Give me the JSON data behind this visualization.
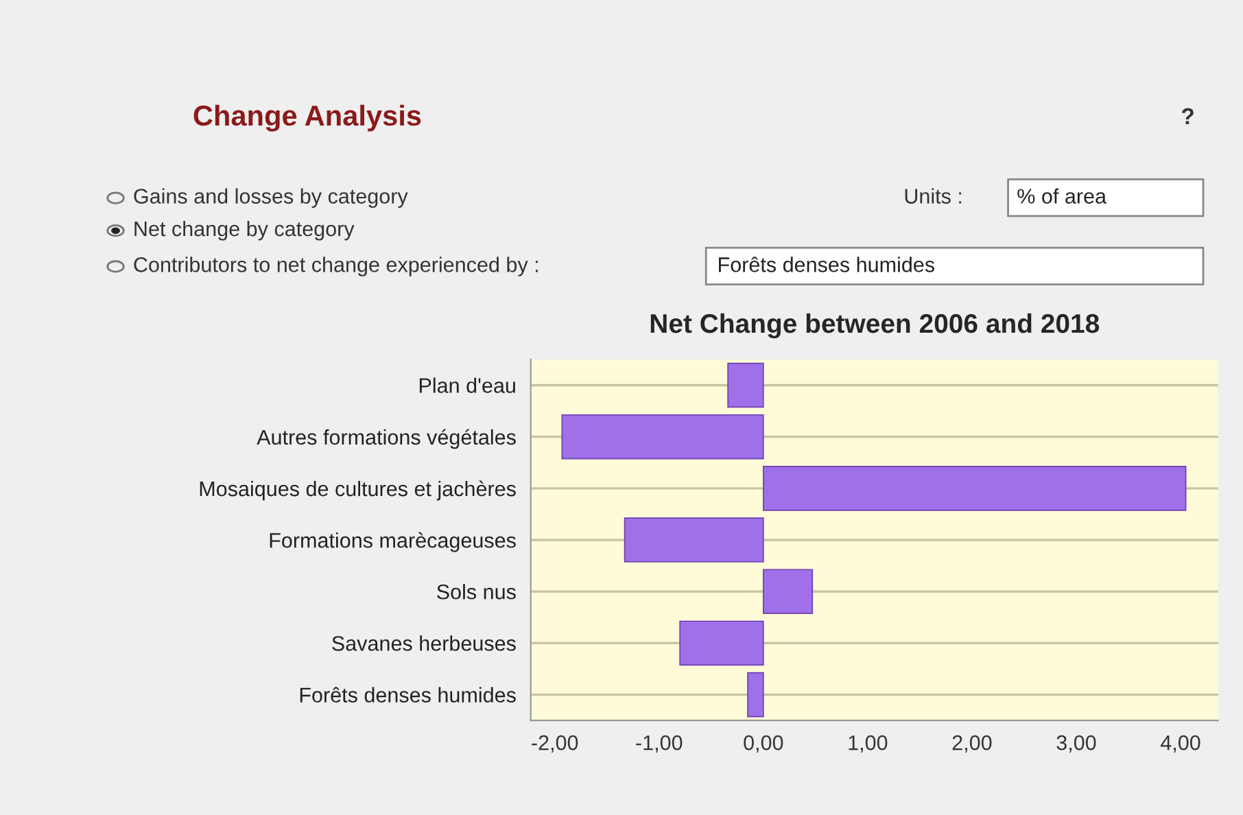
{
  "chart_data": {
    "type": "bar",
    "orientation": "horizontal",
    "title": "Net Change between 2006 and 2018",
    "categories": [
      "Plan d'eau",
      "Autres formations végétales",
      "Mosaiques de cultures et jachères",
      "Formations marècageuses",
      "Sols nus",
      "Savanes herbeuses",
      "Forêts denses humides"
    ],
    "values": [
      -0.34,
      -1.93,
      4.05,
      -1.33,
      0.47,
      -0.8,
      -0.15
    ],
    "color": "#a070e8",
    "xlim": [
      -2.23,
      4.36
    ],
    "xticks": [
      {
        "value": -2,
        "label": "-2,00"
      },
      {
        "value": -1,
        "label": "-1,00"
      },
      {
        "value": 0,
        "label": "0,00"
      },
      {
        "value": 1,
        "label": "1,00"
      },
      {
        "value": 2,
        "label": "2,00"
      },
      {
        "value": 3,
        "label": "3,00"
      },
      {
        "value": 4,
        "label": "4,00"
      }
    ],
    "grid": "y",
    "annotations": [
      "Change Analysis",
      "?",
      "Gains and losses by category",
      "Net change by category",
      "Contributors to net change experienced by :",
      "Units :",
      "% of area",
      "Forêts denses humides"
    ]
  }
}
